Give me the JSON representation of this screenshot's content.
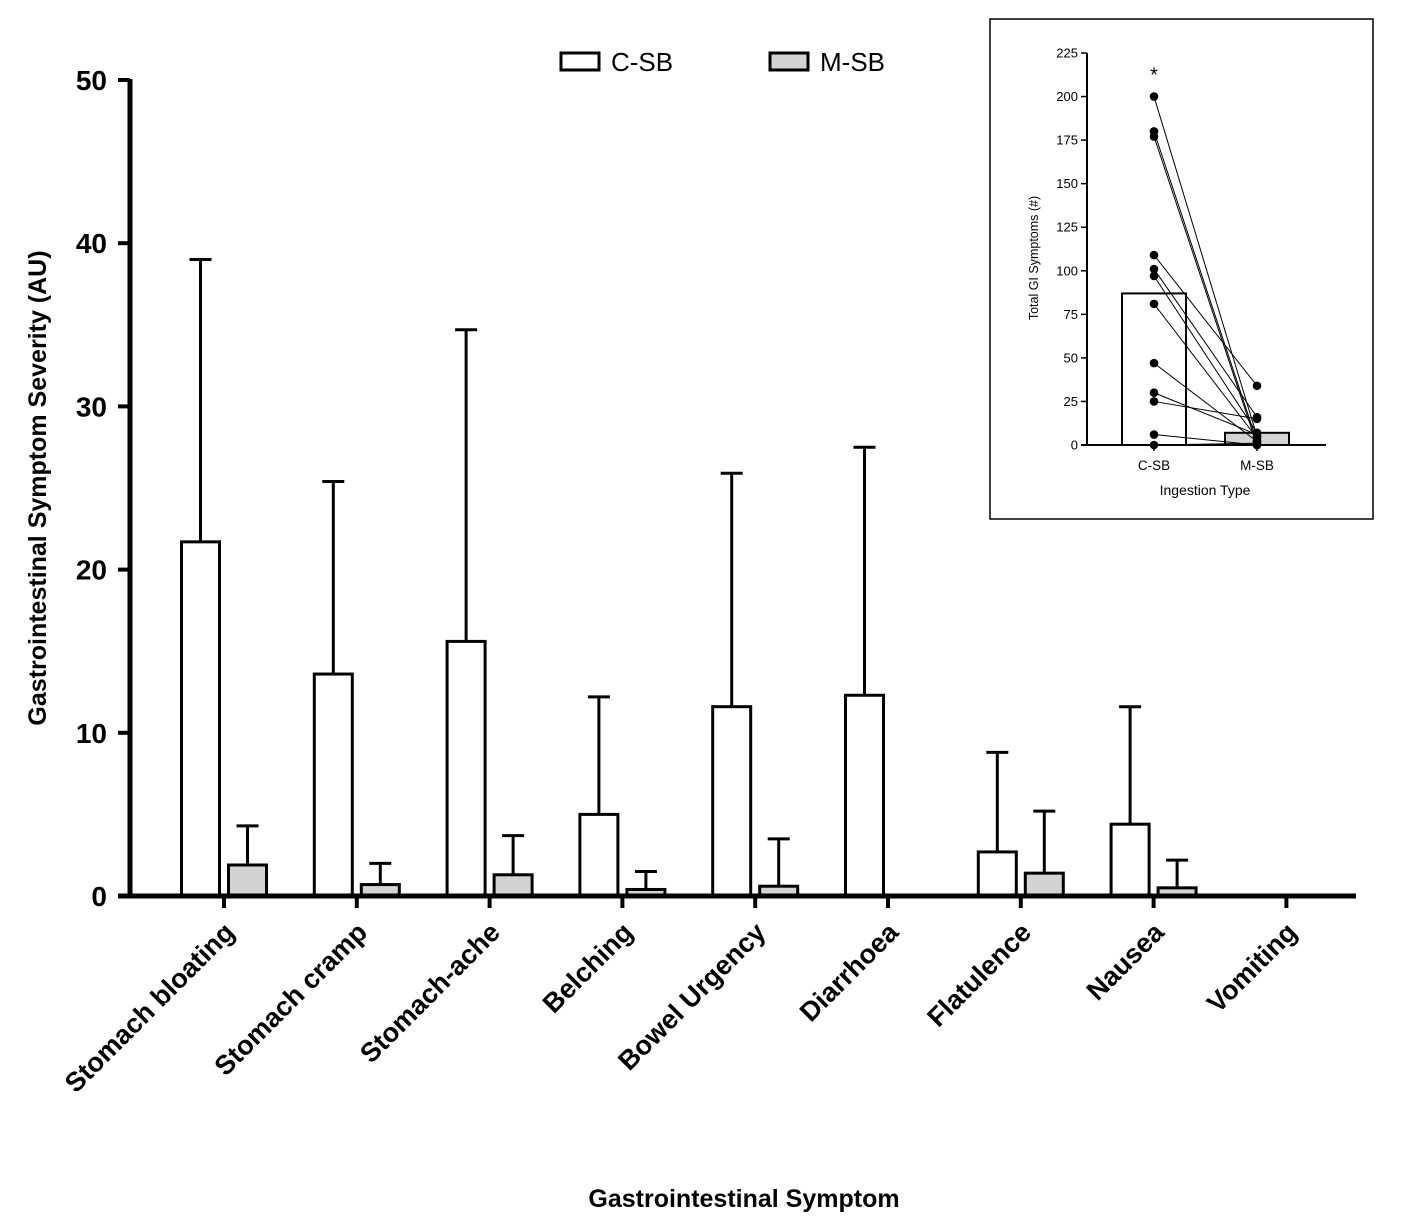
{
  "chart_data": [
    {
      "type": "bar",
      "title": "",
      "xlabel": "Gastrointestinal Symptom",
      "ylabel": "Gastrointestinal Symptom Severity (AU)",
      "ylim": [
        0,
        50
      ],
      "yticks": [
        "0",
        "10",
        "20",
        "30",
        "40",
        "50"
      ],
      "categories": [
        "Stomach bloating",
        "Stomach cramp",
        "Stomach-ache",
        "Belching",
        "Bowel Urgency",
        "Diarrhoea",
        "Flatulence",
        "Nausea",
        "Vomiting"
      ],
      "legend_position": "top-center",
      "series": [
        {
          "name": "C-SB",
          "fill": "#ffffff",
          "values": [
            21.7,
            13.6,
            15.6,
            5.0,
            11.6,
            12.3,
            2.7,
            4.4,
            0
          ],
          "error_upper": [
            39.0,
            25.4,
            34.7,
            12.2,
            25.9,
            27.5,
            8.8,
            11.6,
            0
          ]
        },
        {
          "name": "M-SB",
          "fill": "#d3d3d3",
          "values": [
            1.9,
            0.7,
            1.3,
            0.4,
            0.6,
            0,
            1.4,
            0.5,
            0
          ],
          "error_upper": [
            4.3,
            2.0,
            3.7,
            1.5,
            3.5,
            0,
            5.2,
            2.2,
            0
          ]
        }
      ]
    },
    {
      "type": "bar",
      "title": "",
      "xlabel": "Ingestion Type",
      "ylabel": "Total GI Symptoms (#)",
      "ylim": [
        0,
        225
      ],
      "yticks": [
        "0",
        "25",
        "50",
        "75",
        "100",
        "125",
        "150",
        "175",
        "200",
        "225"
      ],
      "categories": [
        "C-SB",
        "M-SB"
      ],
      "values": [
        87,
        7
      ],
      "significance_marker": "*",
      "paired_points": [
        [
          200,
          5
        ],
        [
          180,
          2
        ],
        [
          177,
          0
        ],
        [
          109,
          34
        ],
        [
          101,
          16
        ],
        [
          97,
          7
        ],
        [
          81,
          4
        ],
        [
          47,
          2
        ],
        [
          30,
          6
        ],
        [
          25,
          15
        ],
        [
          6,
          0
        ],
        [
          0,
          1
        ]
      ]
    }
  ]
}
